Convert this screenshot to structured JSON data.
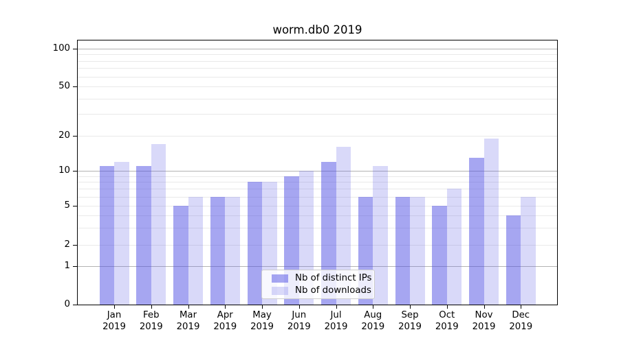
{
  "chart_data": {
    "type": "bar",
    "title": "worm.db0 2019",
    "categories": [
      "Jan",
      "Feb",
      "Mar",
      "Apr",
      "May",
      "Jun",
      "Jul",
      "Aug",
      "Sep",
      "Oct",
      "Nov",
      "Dec"
    ],
    "category_sub": "2019",
    "series": [
      {
        "name": "Nb of distinct IPs",
        "color": "rgba(77,77,227,0.5)",
        "color_flat": "#a6a6f1",
        "values": [
          11,
          11,
          5,
          6,
          8,
          9,
          12,
          6,
          6,
          5,
          13,
          4
        ]
      },
      {
        "name": "Nb of downloads",
        "color": "rgba(103,103,231,0.25)",
        "color_flat": "#d9d9f9",
        "values": [
          12,
          17,
          6,
          6,
          8,
          10,
          16,
          11,
          6,
          7,
          19,
          6
        ]
      }
    ],
    "xlabel": "",
    "ylabel": "",
    "yscale": "symlog",
    "ylim": [
      0,
      116
    ],
    "ytick_labels": [
      "0",
      "1",
      "2",
      "5",
      "10",
      "20",
      "50",
      "100"
    ],
    "ytick_values": [
      0,
      1,
      2,
      5,
      10,
      20,
      50,
      100
    ],
    "major_gridlines": [
      1,
      10,
      100
    ],
    "minor_gridlines": [
      2,
      3,
      4,
      5,
      6,
      7,
      8,
      9,
      20,
      30,
      40,
      50,
      60,
      70,
      80,
      90
    ],
    "grid": "on",
    "legend_position": "lower center",
    "colors": {
      "major_grid": "#b2b2b2",
      "minor_grid": "#e9e9e9",
      "axis": "#000000",
      "background": "#ffffff"
    }
  }
}
